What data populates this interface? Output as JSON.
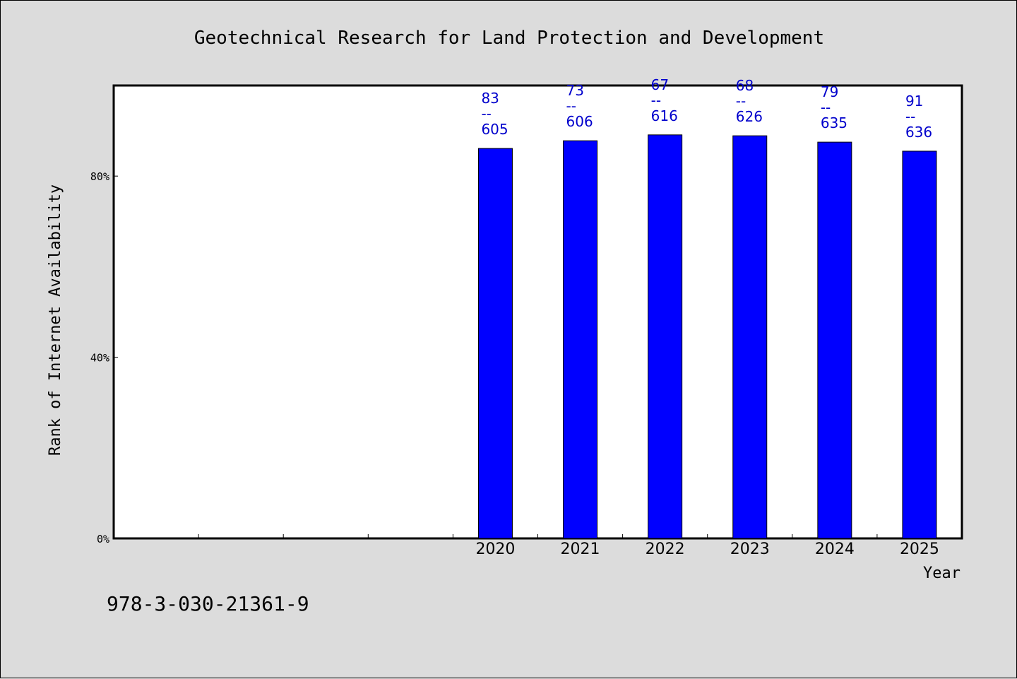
{
  "chart_data": {
    "type": "bar",
    "title": "Geotechnical Research for Land Protection and Development",
    "xlabel": "Year",
    "ylabel": "Rank of Internet Availability",
    "categories": [
      "",
      "",
      "",
      "",
      "2020",
      "2021",
      "2022",
      "2023",
      "2024",
      "2025"
    ],
    "values": [
      null,
      null,
      null,
      null,
      86.1,
      87.8,
      89.1,
      88.9,
      87.5,
      85.5
    ],
    "data_labels": [
      null,
      null,
      null,
      null,
      [
        "83",
        "--",
        "605"
      ],
      [
        "73",
        "--",
        "606"
      ],
      [
        "67",
        "--",
        "616"
      ],
      [
        "68",
        "--",
        "626"
      ],
      [
        "79",
        "--",
        "635"
      ],
      [
        "91",
        "--",
        "636"
      ]
    ],
    "y_ticks": [
      {
        "value": 0,
        "label": "0%"
      },
      {
        "value": 40,
        "label": "40%"
      },
      {
        "value": 80,
        "label": "80%"
      }
    ],
    "ylim": [
      0,
      100
    ],
    "grid": false,
    "legend": "none",
    "bar_color": "#0000ff",
    "label_color": "#0000cc"
  },
  "footer": {
    "isbn": "978-3-030-21361-9"
  }
}
